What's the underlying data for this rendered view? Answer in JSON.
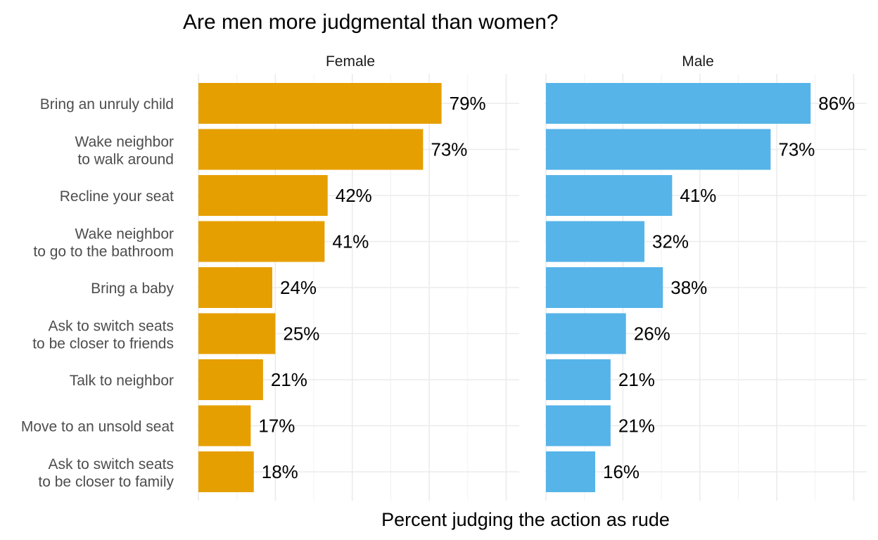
{
  "chart_data": {
    "type": "bar",
    "orientation": "horizontal",
    "title": "Are men more judgmental than women?",
    "xlabel": "Percent judging the action as rude",
    "ylabel": "",
    "xlim": [
      0,
      90
    ],
    "grid": true,
    "legend": "none",
    "categories": [
      [
        "Bring an unruly child"
      ],
      [
        "Wake neighbor",
        "to walk around"
      ],
      [
        "Recline your seat"
      ],
      [
        "Wake neighbor",
        "to go to the bathroom"
      ],
      [
        "Bring a baby"
      ],
      [
        "Ask to switch seats",
        "to be closer to friends"
      ],
      [
        "Talk to neighbor"
      ],
      [
        "Move to an unsold seat"
      ],
      [
        "Ask to switch seats",
        "to be closer to family"
      ]
    ],
    "panels": [
      {
        "name": "Female",
        "color": "#E69F00",
        "values": [
          79,
          73,
          42,
          41,
          24,
          25,
          21,
          17,
          18
        ],
        "labels": [
          "79%",
          "73%",
          "42%",
          "41%",
          "24%",
          "25%",
          "21%",
          "17%",
          "18%"
        ]
      },
      {
        "name": "Male",
        "color": "#56B4E9",
        "values": [
          86,
          73,
          41,
          32,
          38,
          26,
          21,
          21,
          16
        ],
        "labels": [
          "86%",
          "73%",
          "41%",
          "32%",
          "38%",
          "26%",
          "21%",
          "21%",
          "16%"
        ]
      }
    ]
  }
}
